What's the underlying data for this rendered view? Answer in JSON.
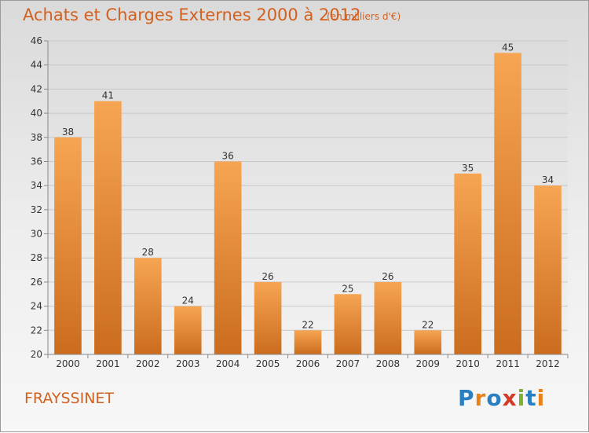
{
  "title": "Achats et Charges Externes 2000 à 2012",
  "subtitle": "(en milliers d'€)",
  "place_name": "FRAYSSINET",
  "logo": {
    "text": "Proxiti",
    "letters": [
      {
        "ch": "P",
        "color": "#2a7fc0"
      },
      {
        "ch": "r",
        "color": "#e8831a"
      },
      {
        "ch": "o",
        "color": "#2a7fc0"
      },
      {
        "ch": "x",
        "color": "#d33b27"
      },
      {
        "ch": "i",
        "color": "#7bb031"
      },
      {
        "ch": "t",
        "color": "#2a7fc0"
      },
      {
        "ch": "i",
        "color": "#e8831a"
      }
    ]
  },
  "colors": {
    "title": "#d2601f",
    "bar_light": "#f6a553",
    "bar_dark": "#cb6c1e",
    "grid": "#c8c8c8",
    "axis": "#888888"
  },
  "chart_data": {
    "type": "bar",
    "categories": [
      "2000",
      "2001",
      "2002",
      "2003",
      "2004",
      "2005",
      "2006",
      "2007",
      "2008",
      "2009",
      "2010",
      "2011",
      "2012"
    ],
    "values": [
      38,
      41,
      28,
      24,
      36,
      26,
      22,
      25,
      26,
      22,
      35,
      45,
      34
    ],
    "ylim": [
      20,
      46
    ],
    "yticks": [
      20,
      22,
      24,
      26,
      28,
      30,
      32,
      34,
      36,
      38,
      40,
      42,
      44,
      46
    ],
    "grid": true,
    "xlabel": "",
    "ylabel": ""
  }
}
